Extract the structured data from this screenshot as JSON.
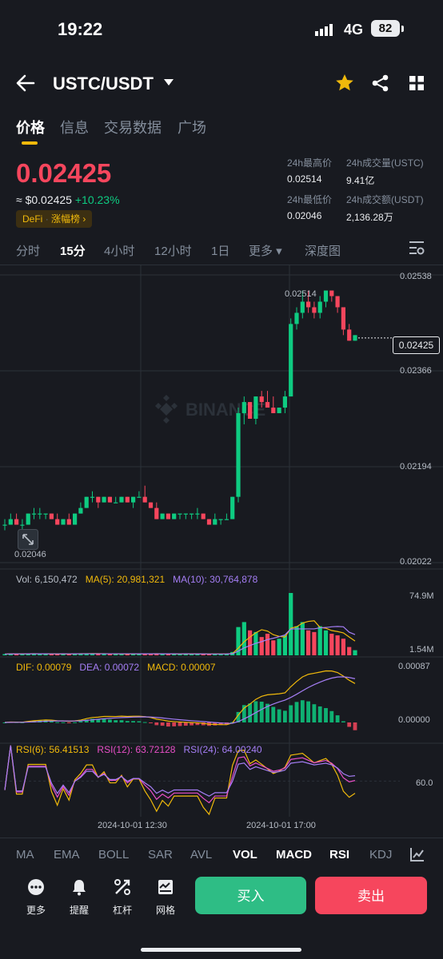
{
  "status_bar": {
    "time": "19:22",
    "network": "4G",
    "battery": "82"
  },
  "header": {
    "pair": "USTC/USDT",
    "icons": [
      "back-arrow-icon",
      "dropdown-caret-icon",
      "star-icon",
      "share-icon",
      "grid-icon"
    ]
  },
  "tabs": [
    "价格",
    "信息",
    "交易数据",
    "广场"
  ],
  "active_tab": "价格",
  "price": {
    "last": "0.02425",
    "fiat": "≈ $0.02425",
    "change": "+10.23%",
    "tag_prefix": "DeFi",
    "tag_label": "涨幅榜",
    "tag_chevron": "›",
    "color_up": "#0ecb81",
    "color_down": "#f6465d"
  },
  "stats": {
    "high_label": "24h最高价",
    "high_value": "0.02514",
    "low_label": "24h最低价",
    "low_value": "0.02046",
    "vol_base_label": "24h成交量(USTC)",
    "vol_base_value": "9.41亿",
    "vol_quote_label": "24h成交额(USDT)",
    "vol_quote_value": "2,136.28万"
  },
  "intervals": [
    "分时",
    "15分",
    "4小时",
    "12小时",
    "1日",
    "更多 ▾",
    "深度图"
  ],
  "active_interval": "15分",
  "chart_axes": {
    "price_ticks": [
      "0.02538",
      "0.02366",
      "0.02194",
      "0.02022"
    ],
    "high_marker": "0.02514",
    "low_marker": "0.02046",
    "current_price": "0.02425",
    "watermark": "BINANCE",
    "vol_ticks": [
      "74.9M",
      "1.54M"
    ],
    "macd_ticks": [
      "0.00087",
      "0.00000"
    ],
    "rsi_ticks": [
      "60.0"
    ],
    "time_ticks": [
      "2024-10-01 12:30",
      "2024-10-01 17:00"
    ]
  },
  "indicators": {
    "vol": "Vol: 6,150,472",
    "ma5": "MA(5): 20,981,321",
    "ma10": "MA(10): 30,764,878",
    "dif": "DIF: 0.00079",
    "dea": "DEA: 0.00072",
    "macd": "MACD: 0.00007",
    "rsi6": "RSI(6): 56.41513",
    "rsi12": "RSI(12): 63.72128",
    "rsi24": "RSI(24): 64.00240"
  },
  "bottom_indicator_tabs": [
    "MA",
    "EMA",
    "BOLL",
    "SAR",
    "AVL",
    "VOL",
    "MACD",
    "RSI",
    "KDJ"
  ],
  "active_indicator_tabs": [
    "VOL",
    "MACD",
    "RSI"
  ],
  "toolbar": [
    {
      "label": "更多",
      "icon": "more-dots-icon"
    },
    {
      "label": "提醒",
      "icon": "bell-icon"
    },
    {
      "label": "杠杆",
      "icon": "leverage-icon"
    },
    {
      "label": "网格",
      "icon": "grid-bot-icon"
    }
  ],
  "actions": {
    "buy": "买入",
    "sell": "卖出"
  },
  "chart_data": {
    "type": "candlestick",
    "title": "",
    "x_labels_shown": [
      "2024-10-01 12:30",
      "2024-10-01 17:00"
    ],
    "ylim": [
      0.02022,
      0.02538
    ],
    "ohlc": [
      [
        0.0209,
        0.021,
        0.0208,
        0.0209
      ],
      [
        0.0209,
        0.0211,
        0.0209,
        0.021
      ],
      [
        0.021,
        0.0211,
        0.0209,
        0.0209
      ],
      [
        0.0209,
        0.021,
        0.0208,
        0.0209
      ],
      [
        0.0209,
        0.0211,
        0.0209,
        0.0211
      ],
      [
        0.0211,
        0.0212,
        0.021,
        0.0211
      ],
      [
        0.0211,
        0.0212,
        0.021,
        0.0211
      ],
      [
        0.0211,
        0.0211,
        0.021,
        0.0211
      ],
      [
        0.0211,
        0.0211,
        0.021,
        0.021
      ],
      [
        0.021,
        0.0211,
        0.0209,
        0.0209
      ],
      [
        0.0209,
        0.021,
        0.0209,
        0.021
      ],
      [
        0.021,
        0.0211,
        0.0209,
        0.0209
      ],
      [
        0.0209,
        0.0211,
        0.0209,
        0.0211
      ],
      [
        0.0211,
        0.0213,
        0.0211,
        0.0212
      ],
      [
        0.0212,
        0.0214,
        0.0212,
        0.0214
      ],
      [
        0.0214,
        0.0215,
        0.0213,
        0.0214
      ],
      [
        0.0214,
        0.0214,
        0.0212,
        0.0213
      ],
      [
        0.0213,
        0.0214,
        0.0213,
        0.0214
      ],
      [
        0.0214,
        0.0214,
        0.0213,
        0.0213
      ],
      [
        0.0213,
        0.0214,
        0.0213,
        0.0213
      ],
      [
        0.0213,
        0.0214,
        0.0213,
        0.0214
      ],
      [
        0.0214,
        0.0214,
        0.0213,
        0.0213
      ],
      [
        0.0213,
        0.0214,
        0.0212,
        0.0214
      ],
      [
        0.0214,
        0.0215,
        0.0214,
        0.0214
      ],
      [
        0.0214,
        0.0216,
        0.0213,
        0.0213
      ],
      [
        0.0213,
        0.0213,
        0.0212,
        0.0212
      ],
      [
        0.0212,
        0.0213,
        0.021,
        0.021
      ],
      [
        0.021,
        0.0211,
        0.021,
        0.0211
      ],
      [
        0.0211,
        0.0211,
        0.021,
        0.021
      ],
      [
        0.021,
        0.0211,
        0.021,
        0.0211
      ],
      [
        0.0211,
        0.0211,
        0.021,
        0.0211
      ],
      [
        0.0211,
        0.0211,
        0.021,
        0.0211
      ],
      [
        0.0211,
        0.0211,
        0.021,
        0.0211
      ],
      [
        0.0211,
        0.0212,
        0.021,
        0.0211
      ],
      [
        0.0211,
        0.0211,
        0.021,
        0.021
      ],
      [
        0.021,
        0.021,
        0.0209,
        0.0209
      ],
      [
        0.0209,
        0.0211,
        0.0209,
        0.021
      ],
      [
        0.021,
        0.021,
        0.0209,
        0.021
      ],
      [
        0.021,
        0.0211,
        0.021,
        0.021
      ],
      [
        0.021,
        0.0214,
        0.021,
        0.0214
      ],
      [
        0.0214,
        0.023,
        0.0213,
        0.0229
      ],
      [
        0.0229,
        0.0232,
        0.0227,
        0.0231
      ],
      [
        0.0231,
        0.0231,
        0.0228,
        0.0228
      ],
      [
        0.0228,
        0.0232,
        0.0227,
        0.0232
      ],
      [
        0.0232,
        0.0233,
        0.023,
        0.0231
      ],
      [
        0.0231,
        0.0233,
        0.023,
        0.023
      ],
      [
        0.023,
        0.0232,
        0.0229,
        0.0229
      ],
      [
        0.0229,
        0.023,
        0.0229,
        0.023
      ],
      [
        0.023,
        0.0233,
        0.0229,
        0.0232
      ],
      [
        0.0232,
        0.0246,
        0.0232,
        0.0245
      ],
      [
        0.0245,
        0.0248,
        0.0244,
        0.0247
      ],
      [
        0.0247,
        0.0251,
        0.0246,
        0.0249
      ],
      [
        0.0249,
        0.0251,
        0.0247,
        0.0248
      ],
      [
        0.0248,
        0.0249,
        0.0246,
        0.0247
      ],
      [
        0.0247,
        0.025,
        0.0246,
        0.0249
      ],
      [
        0.0249,
        0.0251,
        0.0248,
        0.0251
      ],
      [
        0.0251,
        0.0251,
        0.0249,
        0.025
      ],
      [
        0.025,
        0.025,
        0.0247,
        0.0248
      ],
      [
        0.0248,
        0.0248,
        0.0243,
        0.0244
      ],
      [
        0.0244,
        0.0245,
        0.0242,
        0.0242
      ],
      [
        0.0242,
        0.0243,
        0.0242,
        0.0243
      ]
    ],
    "volume_m": [
      1.5,
      2,
      1.6,
      1.8,
      2.2,
      1.9,
      1.7,
      1.5,
      1.6,
      1.8,
      1.7,
      1.6,
      2.1,
      2.3,
      2.2,
      1.9,
      1.7,
      1.8,
      1.6,
      1.7,
      1.8,
      1.6,
      1.9,
      2,
      2.1,
      1.8,
      1.7,
      1.6,
      1.5,
      1.7,
      1.6,
      1.8,
      1.7,
      1.6,
      1.5,
      1.6,
      1.7,
      1.6,
      1.8,
      4,
      34,
      40,
      30,
      28,
      22,
      26,
      18,
      20,
      24,
      75,
      35,
      40,
      30,
      28,
      35,
      30,
      26,
      24,
      20,
      10,
      6.15
    ]
  }
}
